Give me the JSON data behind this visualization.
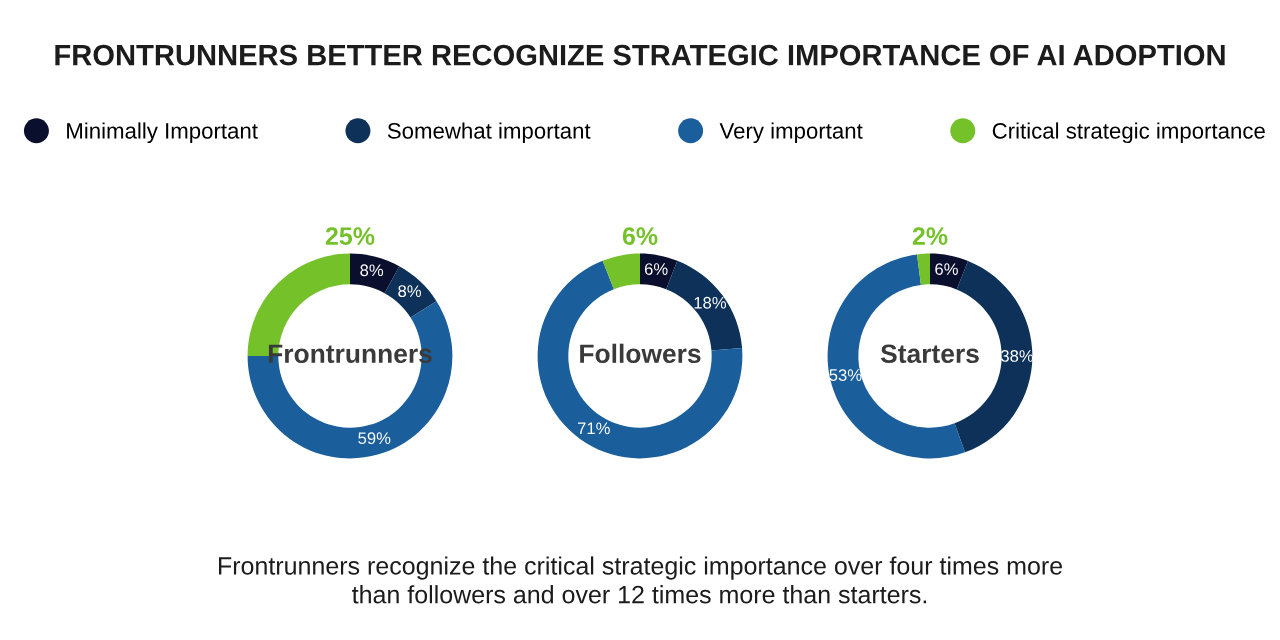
{
  "chart_data": [
    {
      "type": "donut",
      "title": "Frontrunners",
      "categories": [
        "Minimally Important",
        "Somewhat important",
        "Very important",
        "Critical strategic importance"
      ],
      "values": [
        8,
        8,
        59,
        25
      ],
      "colors": [
        "#0b0f2e",
        "#0d3158",
        "#1a5e9c",
        "#74c12a"
      ],
      "value_labels": [
        "8%",
        "8%",
        "59%",
        "25%"
      ],
      "legend": "top",
      "annotations": [
        "FRONTRUNNERS BETTER RECOGNIZE STRATEGIC IMPORTANCE OF AI ADOPTION"
      ]
    },
    {
      "type": "donut",
      "title": "Followers",
      "values": [
        6,
        18,
        71,
        6
      ],
      "colors": [
        "#0b0f2e",
        "#0d3158",
        "#1a5e9c",
        "#74c12a"
      ],
      "value_labels": [
        "6%",
        "18%",
        "71%",
        "6%"
      ]
    },
    {
      "type": "donut",
      "title": "Starters",
      "values": [
        6,
        38,
        53,
        2
      ],
      "colors": [
        "#0b0f2e",
        "#0d3158",
        "#1a5e9c",
        "#74c12a"
      ],
      "value_labels": [
        "6%",
        "38%",
        "53%",
        "2%"
      ],
      "annotations": [
        "Frontrunners recognize the critical strategic importance over four times more\nthan followers and over 12 times more than starters."
      ]
    }
  ]
}
